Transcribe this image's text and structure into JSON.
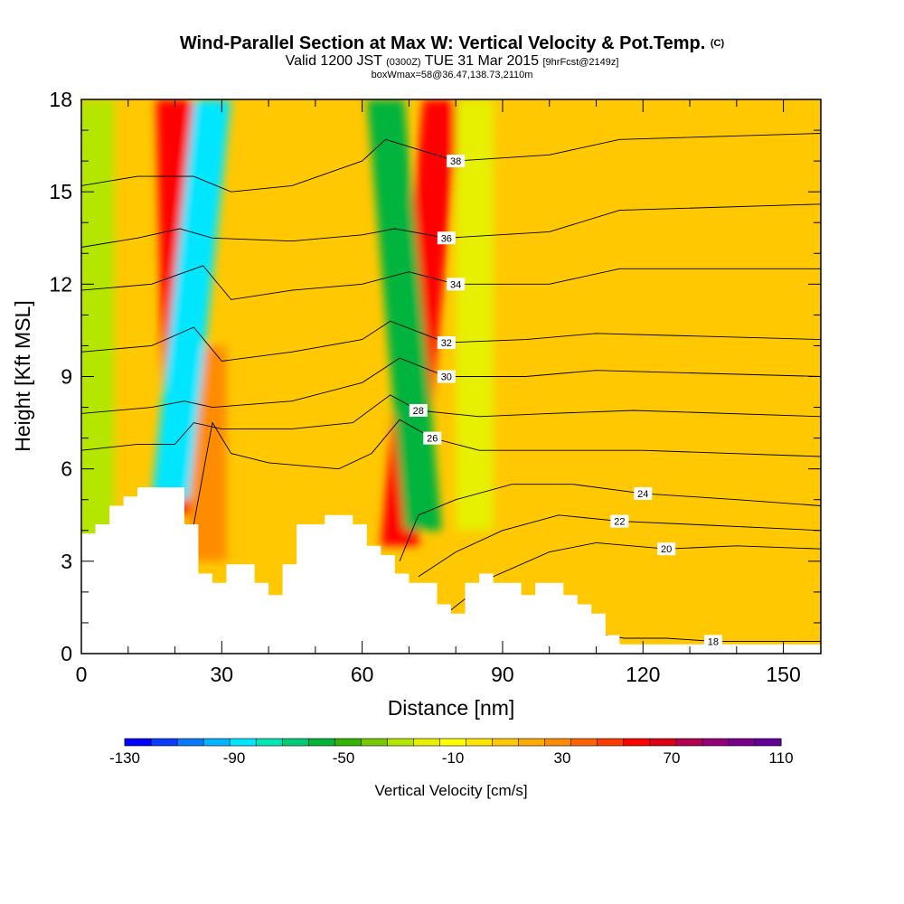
{
  "title": {
    "main": "Wind-Parallel Section at Max W: Vertical Velocity & Pot.Temp.",
    "mark": "(C)",
    "valid_prefix": "Valid 1200 JST",
    "valid_zulu": "(0300Z)",
    "valid_date": "TUE 31 Mar 2015",
    "forecast": "[9hrFcst@2149z]",
    "box": "boxWmax=58@36.47,138.73,2110m"
  },
  "colorbar": {
    "label": "Vertical Velocity [cm/s]",
    "tick_labels": [
      "-130",
      "-90",
      "-50",
      "-10",
      "30",
      "70",
      "110"
    ],
    "colors": [
      "#0000ff",
      "#0a3cff",
      "#0a78ff",
      "#00b4ff",
      "#00e6ff",
      "#00e6b4",
      "#00cc78",
      "#00b43c",
      "#32b400",
      "#78c800",
      "#b4e600",
      "#e6f000",
      "#ffff00",
      "#ffe600",
      "#ffc800",
      "#ffaa00",
      "#ff8c00",
      "#ff6400",
      "#ff3c00",
      "#ff0000",
      "#dc0014",
      "#b40050",
      "#960078",
      "#78008c",
      "#640096"
    ]
  },
  "chart_data": {
    "type": "heatmap",
    "xlabel": "Distance [nm]",
    "ylabel": "Height [Kft MSL]",
    "xlim": [
      0,
      158
    ],
    "ylim": [
      0,
      18
    ],
    "xticks": [
      0,
      30,
      60,
      90,
      120,
      150
    ],
    "yticks": [
      0,
      3,
      6,
      9,
      12,
      15,
      18
    ],
    "field": "vertical velocity (cm/s), contours of potential temperature",
    "velocity_range": [
      -130,
      110
    ],
    "background_velocity": 10,
    "velocity_features": [
      {
        "x_bottom": 22,
        "x_top": 20,
        "y_bottom": 4.5,
        "y_top": 18,
        "w": 60
      },
      {
        "x_bottom": 27,
        "x_top": 27,
        "y_bottom": 3.0,
        "y_top": 10.0,
        "w": 30
      },
      {
        "x_bottom": 19,
        "x_top": 28,
        "y_bottom": 5.0,
        "y_top": 18,
        "w": -90
      },
      {
        "x_bottom": 68,
        "x_top": 77,
        "y_bottom": 3.5,
        "y_top": 18,
        "w": 60
      },
      {
        "x_bottom": 73,
        "x_top": 65,
        "y_bottom": 4.0,
        "y_top": 18,
        "w": -60
      },
      {
        "x_bottom": 84,
        "x_top": 84,
        "y_bottom": 4.0,
        "y_top": 18,
        "w": -20
      },
      {
        "x_bottom": 3,
        "x_top": 3,
        "y_bottom": 3.5,
        "y_top": 18,
        "w": -25
      }
    ],
    "terrain": [
      [
        0,
        3.9
      ],
      [
        3,
        3.9
      ],
      [
        3,
        4.2
      ],
      [
        6,
        4.2
      ],
      [
        6,
        4.8
      ],
      [
        9,
        4.8
      ],
      [
        9,
        5.1
      ],
      [
        12,
        5.1
      ],
      [
        12,
        5.4
      ],
      [
        15,
        5.4
      ],
      [
        22,
        5.4
      ],
      [
        22,
        4.2
      ],
      [
        25,
        4.2
      ],
      [
        25,
        2.6
      ],
      [
        28,
        2.6
      ],
      [
        28,
        2.3
      ],
      [
        31,
        2.3
      ],
      [
        31,
        2.9
      ],
      [
        37,
        2.9
      ],
      [
        37,
        2.3
      ],
      [
        40,
        2.3
      ],
      [
        40,
        1.9
      ],
      [
        43,
        1.9
      ],
      [
        43,
        2.9
      ],
      [
        46,
        2.9
      ],
      [
        46,
        4.2
      ],
      [
        52,
        4.2
      ],
      [
        52,
        4.5
      ],
      [
        58,
        4.5
      ],
      [
        58,
        4.2
      ],
      [
        61,
        4.2
      ],
      [
        61,
        3.5
      ],
      [
        64,
        3.5
      ],
      [
        64,
        3.2
      ],
      [
        67,
        3.2
      ],
      [
        67,
        2.6
      ],
      [
        70,
        2.6
      ],
      [
        70,
        2.3
      ],
      [
        76,
        2.3
      ],
      [
        76,
        1.6
      ],
      [
        79,
        1.6
      ],
      [
        79,
        1.3
      ],
      [
        82,
        1.3
      ],
      [
        82,
        2.3
      ],
      [
        85,
        2.3
      ],
      [
        85,
        2.6
      ],
      [
        88,
        2.6
      ],
      [
        88,
        2.3
      ],
      [
        94,
        2.3
      ],
      [
        94,
        1.9
      ],
      [
        97,
        1.9
      ],
      [
        97,
        2.3
      ],
      [
        103,
        2.3
      ],
      [
        103,
        1.9
      ],
      [
        106,
        1.9
      ],
      [
        106,
        1.6
      ],
      [
        109,
        1.6
      ],
      [
        109,
        1.3
      ],
      [
        112,
        1.3
      ],
      [
        112,
        0.6
      ],
      [
        115,
        0.6
      ],
      [
        115,
        0.3
      ],
      [
        158,
        0.3
      ],
      [
        158,
        0
      ]
    ],
    "pot_temp_contours": [
      {
        "label": "18",
        "points": [
          [
            112,
            0.6
          ],
          [
            116,
            0.5
          ],
          [
            125,
            0.5
          ],
          [
            135,
            0.4
          ],
          [
            158,
            0.4
          ]
        ]
      },
      {
        "label": "20",
        "points": [
          [
            78,
            1.3
          ],
          [
            88,
            2.5
          ],
          [
            100,
            3.3
          ],
          [
            110,
            3.6
          ],
          [
            125,
            3.4
          ],
          [
            140,
            3.5
          ],
          [
            158,
            3.4
          ]
        ]
      },
      {
        "label": "22",
        "points": [
          [
            72,
            2.5
          ],
          [
            80,
            3.3
          ],
          [
            90,
            4.0
          ],
          [
            102,
            4.5
          ],
          [
            115,
            4.3
          ],
          [
            130,
            4.2
          ],
          [
            158,
            4.0
          ]
        ]
      },
      {
        "label": "24",
        "points": [
          [
            68,
            3.0
          ],
          [
            72,
            4.5
          ],
          [
            80,
            5.0
          ],
          [
            92,
            5.5
          ],
          [
            105,
            5.5
          ],
          [
            120,
            5.2
          ],
          [
            140,
            5.0
          ],
          [
            158,
            4.8
          ]
        ]
      },
      {
        "label": "26",
        "points": [
          [
            24,
            4.2
          ],
          [
            28,
            7.5
          ],
          [
            32,
            6.5
          ],
          [
            40,
            6.2
          ],
          [
            55,
            6.0
          ],
          [
            62,
            6.5
          ],
          [
            68,
            7.6
          ],
          [
            75,
            7.0
          ],
          [
            85,
            6.6
          ],
          [
            100,
            6.6
          ],
          [
            120,
            6.6
          ],
          [
            158,
            6.4
          ]
        ]
      },
      {
        "label": "28",
        "points": [
          [
            0,
            6.6
          ],
          [
            12,
            6.8
          ],
          [
            20,
            6.8
          ],
          [
            24,
            7.5
          ],
          [
            30,
            7.3
          ],
          [
            45,
            7.3
          ],
          [
            58,
            7.5
          ],
          [
            66,
            8.4
          ],
          [
            72,
            7.9
          ],
          [
            85,
            7.7
          ],
          [
            100,
            7.8
          ],
          [
            118,
            7.9
          ],
          [
            158,
            7.7
          ]
        ]
      },
      {
        "label": "30",
        "points": [
          [
            0,
            7.8
          ],
          [
            15,
            8.0
          ],
          [
            22,
            8.2
          ],
          [
            28,
            8.0
          ],
          [
            45,
            8.2
          ],
          [
            60,
            8.8
          ],
          [
            68,
            9.6
          ],
          [
            78,
            9.0
          ],
          [
            95,
            9.0
          ],
          [
            110,
            9.2
          ],
          [
            158,
            9.0
          ]
        ]
      },
      {
        "label": "32",
        "points": [
          [
            0,
            9.8
          ],
          [
            15,
            10.0
          ],
          [
            24,
            10.6
          ],
          [
            30,
            9.5
          ],
          [
            45,
            9.8
          ],
          [
            60,
            10.2
          ],
          [
            66,
            10.8
          ],
          [
            78,
            10.1
          ],
          [
            95,
            10.2
          ],
          [
            110,
            10.4
          ],
          [
            158,
            10.2
          ]
        ]
      },
      {
        "label": "34",
        "points": [
          [
            0,
            11.8
          ],
          [
            15,
            12.0
          ],
          [
            26,
            12.6
          ],
          [
            32,
            11.5
          ],
          [
            45,
            11.8
          ],
          [
            60,
            12.0
          ],
          [
            70,
            12.4
          ],
          [
            80,
            12.0
          ],
          [
            100,
            12.0
          ],
          [
            115,
            12.5
          ],
          [
            158,
            12.5
          ]
        ]
      },
      {
        "label": "36",
        "points": [
          [
            0,
            13.2
          ],
          [
            12,
            13.5
          ],
          [
            21,
            13.8
          ],
          [
            28,
            13.5
          ],
          [
            45,
            13.4
          ],
          [
            60,
            13.6
          ],
          [
            67,
            13.8
          ],
          [
            78,
            13.5
          ],
          [
            100,
            13.7
          ],
          [
            115,
            14.4
          ],
          [
            158,
            14.6
          ]
        ]
      },
      {
        "label": "38",
        "points": [
          [
            0,
            15.2
          ],
          [
            12,
            15.5
          ],
          [
            24,
            15.5
          ],
          [
            32,
            15.0
          ],
          [
            45,
            15.2
          ],
          [
            60,
            16.0
          ],
          [
            65,
            16.7
          ],
          [
            80,
            16.0
          ],
          [
            100,
            16.2
          ],
          [
            115,
            16.7
          ],
          [
            158,
            16.9
          ]
        ]
      }
    ]
  }
}
